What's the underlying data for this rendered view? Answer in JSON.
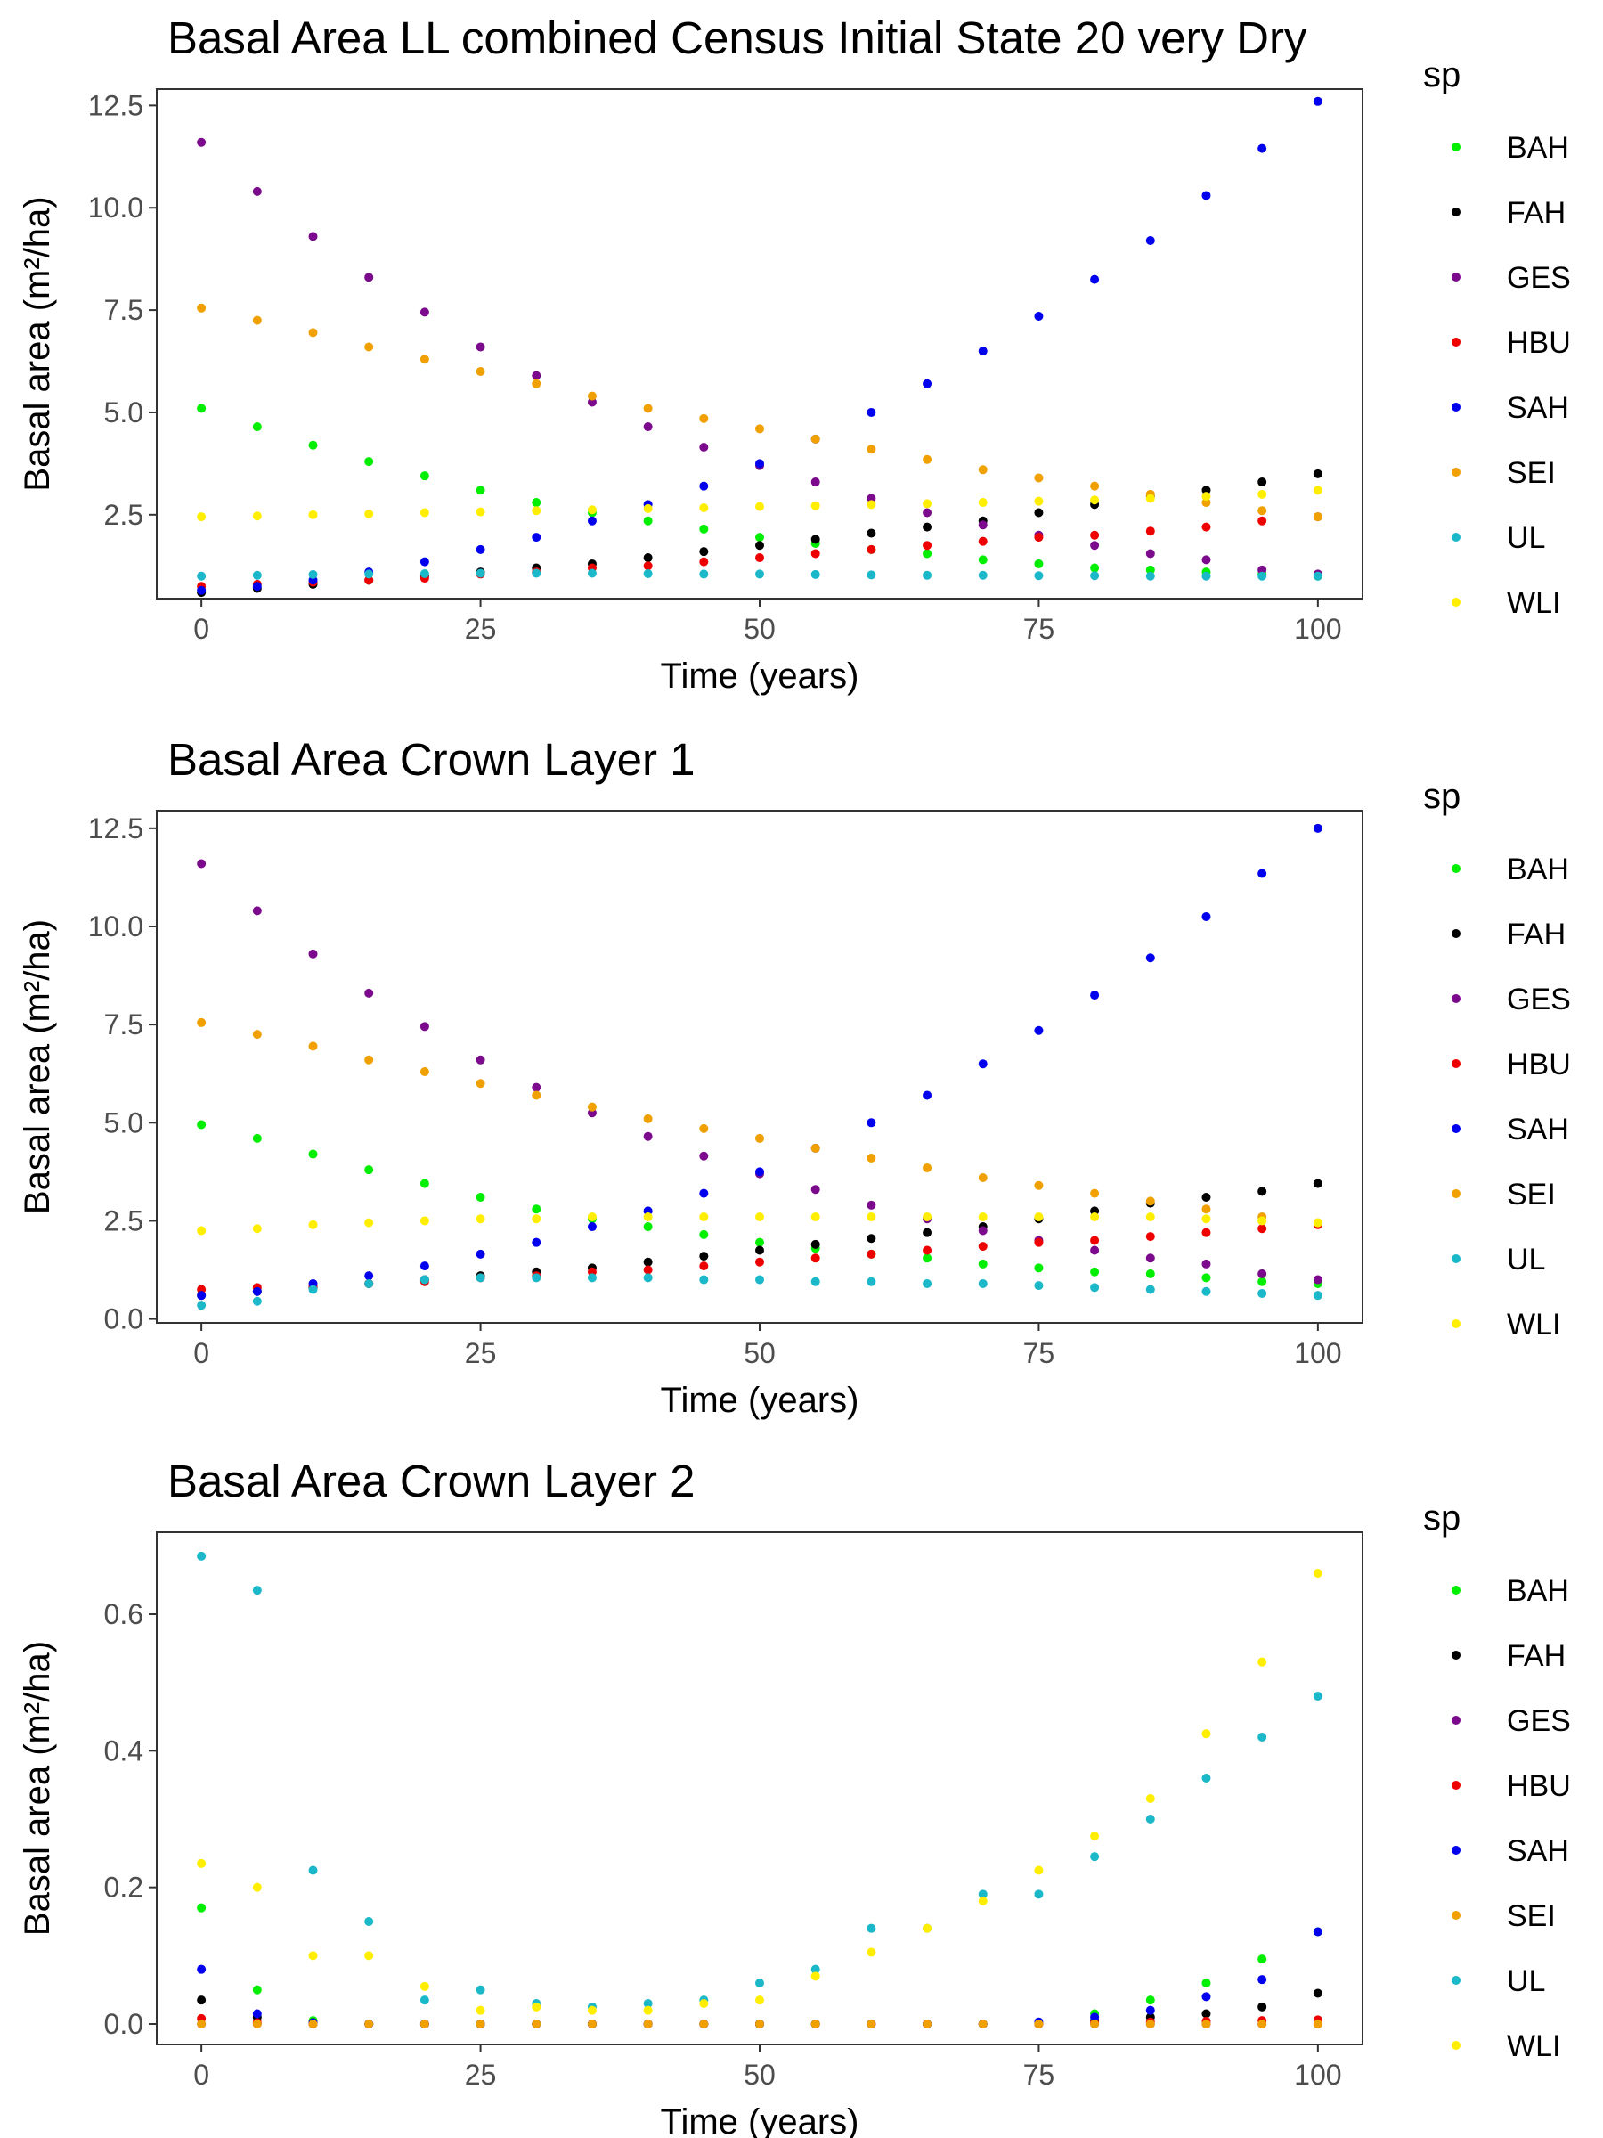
{
  "colors": {
    "BAH": "#00ee00",
    "FAH": "#000000",
    "GES": "#7b0a8c",
    "HBU": "#ee0000",
    "SAH": "#0000ee",
    "SEI": "#f0a000",
    "UL": "#1ab8c8",
    "WLI": "#ffee00"
  },
  "chart_data": [
    {
      "type": "scatter",
      "title": "Basal Area LL combined Census Initial State 20 very Dry",
      "xlabel": "Time (years)",
      "ylabel": "Basal area (m²/ha)",
      "xlim": [
        -4,
        104
      ],
      "ylim": [
        0.45,
        12.9
      ],
      "xticks": [
        0,
        25,
        50,
        75,
        100
      ],
      "xtick_labels": [
        "0",
        "25",
        "50",
        "75",
        "100"
      ],
      "yticks": [
        2.5,
        5.0,
        7.5,
        10.0,
        12.5
      ],
      "ytick_labels": [
        "2.5",
        "5.0",
        "7.5",
        "10.0",
        "12.5"
      ],
      "legend": {
        "title": "sp",
        "position": "right"
      },
      "grid": false,
      "x": [
        0,
        5,
        10,
        15,
        20,
        25,
        30,
        35,
        40,
        45,
        50,
        55,
        60,
        65,
        70,
        75,
        80,
        85,
        90,
        95,
        100
      ],
      "series": [
        {
          "name": "BAH",
          "values": [
            5.1,
            4.65,
            4.2,
            3.8,
            3.45,
            3.1,
            2.8,
            2.55,
            2.35,
            2.15,
            1.95,
            1.8,
            1.65,
            1.55,
            1.4,
            1.3,
            1.2,
            1.15,
            1.1,
            1.05,
            1.0
          ]
        },
        {
          "name": "FAH",
          "values": [
            0.6,
            0.7,
            0.8,
            0.9,
            1.0,
            1.1,
            1.2,
            1.3,
            1.45,
            1.6,
            1.75,
            1.9,
            2.05,
            2.2,
            2.35,
            2.55,
            2.75,
            2.95,
            3.1,
            3.3,
            3.5
          ]
        },
        {
          "name": "GES",
          "values": [
            11.6,
            10.4,
            9.3,
            8.3,
            7.45,
            6.6,
            5.9,
            5.25,
            4.65,
            4.15,
            3.7,
            3.3,
            2.9,
            2.55,
            2.25,
            2.0,
            1.75,
            1.55,
            1.4,
            1.15,
            1.05
          ]
        },
        {
          "name": "HBU",
          "values": [
            0.75,
            0.8,
            0.85,
            0.9,
            0.95,
            1.05,
            1.1,
            1.2,
            1.25,
            1.35,
            1.45,
            1.55,
            1.65,
            1.75,
            1.85,
            1.95,
            2.0,
            2.1,
            2.2,
            2.35,
            2.45
          ]
        },
        {
          "name": "SAH",
          "values": [
            0.65,
            0.75,
            0.9,
            1.1,
            1.35,
            1.65,
            1.95,
            2.35,
            2.75,
            3.2,
            3.75,
            4.35,
            5.0,
            5.7,
            6.5,
            7.35,
            8.25,
            9.2,
            10.3,
            11.45,
            12.6
          ]
        },
        {
          "name": "SEI",
          "values": [
            7.55,
            7.25,
            6.95,
            6.6,
            6.3,
            6.0,
            5.7,
            5.4,
            5.1,
            4.85,
            4.6,
            4.35,
            4.1,
            3.85,
            3.6,
            3.4,
            3.2,
            3.0,
            2.8,
            2.6,
            2.45
          ]
        },
        {
          "name": "UL",
          "values": [
            1.0,
            1.02,
            1.04,
            1.05,
            1.06,
            1.07,
            1.07,
            1.07,
            1.06,
            1.05,
            1.05,
            1.04,
            1.03,
            1.02,
            1.02,
            1.01,
            1.01,
            1.0,
            1.0,
            1.0,
            1.0
          ]
        },
        {
          "name": "WLI",
          "values": [
            2.45,
            2.47,
            2.5,
            2.52,
            2.55,
            2.57,
            2.6,
            2.62,
            2.65,
            2.67,
            2.7,
            2.72,
            2.75,
            2.77,
            2.8,
            2.83,
            2.86,
            2.9,
            2.95,
            3.0,
            3.1
          ]
        }
      ]
    },
    {
      "type": "scatter",
      "title": "Basal Area Crown Layer 1",
      "xlabel": "Time (years)",
      "ylabel": "Basal area (m²/ha)",
      "xlim": [
        -4,
        104
      ],
      "ylim": [
        -0.1,
        12.95
      ],
      "xticks": [
        0,
        25,
        50,
        75,
        100
      ],
      "xtick_labels": [
        "0",
        "25",
        "50",
        "75",
        "100"
      ],
      "yticks": [
        0.0,
        2.5,
        5.0,
        7.5,
        10.0,
        12.5
      ],
      "ytick_labels": [
        "0.0",
        "2.5",
        "5.0",
        "7.5",
        "10.0",
        "12.5"
      ],
      "legend": {
        "title": "sp",
        "position": "right"
      },
      "grid": false,
      "x": [
        0,
        5,
        10,
        15,
        20,
        25,
        30,
        35,
        40,
        45,
        50,
        55,
        60,
        65,
        70,
        75,
        80,
        85,
        90,
        95,
        100
      ],
      "series": [
        {
          "name": "BAH",
          "values": [
            4.95,
            4.6,
            4.2,
            3.8,
            3.45,
            3.1,
            2.8,
            2.55,
            2.35,
            2.15,
            1.95,
            1.8,
            1.65,
            1.55,
            1.4,
            1.3,
            1.2,
            1.15,
            1.05,
            0.95,
            0.9
          ]
        },
        {
          "name": "FAH",
          "values": [
            0.6,
            0.7,
            0.8,
            0.9,
            1.0,
            1.1,
            1.2,
            1.3,
            1.45,
            1.6,
            1.75,
            1.9,
            2.05,
            2.2,
            2.35,
            2.55,
            2.75,
            2.95,
            3.1,
            3.25,
            3.45
          ]
        },
        {
          "name": "GES",
          "values": [
            11.6,
            10.4,
            9.3,
            8.3,
            7.45,
            6.6,
            5.9,
            5.25,
            4.65,
            4.15,
            3.7,
            3.3,
            2.9,
            2.55,
            2.25,
            2.0,
            1.75,
            1.55,
            1.4,
            1.15,
            1.0
          ]
        },
        {
          "name": "HBU",
          "values": [
            0.75,
            0.8,
            0.85,
            0.9,
            0.95,
            1.05,
            1.1,
            1.2,
            1.25,
            1.35,
            1.45,
            1.55,
            1.65,
            1.75,
            1.85,
            1.95,
            2.0,
            2.1,
            2.2,
            2.3,
            2.4
          ]
        },
        {
          "name": "SAH",
          "values": [
            0.6,
            0.7,
            0.9,
            1.1,
            1.35,
            1.65,
            1.95,
            2.35,
            2.75,
            3.2,
            3.75,
            4.35,
            5.0,
            5.7,
            6.5,
            7.35,
            8.25,
            9.2,
            10.25,
            11.35,
            12.5
          ]
        },
        {
          "name": "SEI",
          "values": [
            7.55,
            7.25,
            6.95,
            6.6,
            6.3,
            6.0,
            5.7,
            5.4,
            5.1,
            4.85,
            4.6,
            4.35,
            4.1,
            3.85,
            3.6,
            3.4,
            3.2,
            3.0,
            2.8,
            2.6,
            2.45
          ]
        },
        {
          "name": "UL",
          "values": [
            0.35,
            0.45,
            0.75,
            0.9,
            1.0,
            1.05,
            1.05,
            1.05,
            1.05,
            1.0,
            1.0,
            0.95,
            0.95,
            0.9,
            0.9,
            0.85,
            0.8,
            0.75,
            0.7,
            0.65,
            0.6
          ]
        },
        {
          "name": "WLI",
          "values": [
            2.25,
            2.3,
            2.4,
            2.45,
            2.5,
            2.55,
            2.55,
            2.6,
            2.6,
            2.6,
            2.6,
            2.6,
            2.6,
            2.6,
            2.6,
            2.6,
            2.6,
            2.6,
            2.55,
            2.5,
            2.45
          ]
        }
      ]
    },
    {
      "type": "scatter",
      "title": "Basal Area Crown Layer 2",
      "xlabel": "Time (years)",
      "ylabel": "Basal area (m²/ha)",
      "xlim": [
        -4,
        104
      ],
      "ylim": [
        -0.03,
        0.72
      ],
      "xticks": [
        0,
        25,
        50,
        75,
        100
      ],
      "xtick_labels": [
        "0",
        "25",
        "50",
        "75",
        "100"
      ],
      "yticks": [
        0.0,
        0.2,
        0.4,
        0.6
      ],
      "ytick_labels": [
        "0.0",
        "0.2",
        "0.4",
        "0.6"
      ],
      "legend": {
        "title": "sp",
        "position": "right"
      },
      "grid": false,
      "x": [
        0,
        5,
        10,
        15,
        20,
        25,
        30,
        35,
        40,
        45,
        50,
        55,
        60,
        65,
        70,
        75,
        80,
        85,
        90,
        95,
        100
      ],
      "series": [
        {
          "name": "BAH",
          "values": [
            0.17,
            0.05,
            0.005,
            0,
            0,
            0,
            0,
            0,
            0,
            0,
            0,
            0,
            0,
            0,
            0,
            0,
            0.015,
            0.035,
            0.06,
            0.095,
            0.135
          ]
        },
        {
          "name": "FAH",
          "values": [
            0.035,
            0.01,
            0.002,
            0,
            0,
            0,
            0,
            0,
            0,
            0,
            0,
            0,
            0,
            0,
            0,
            0,
            0.005,
            0.01,
            0.015,
            0.025,
            0.045
          ]
        },
        {
          "name": "GES",
          "values": [
            0,
            0,
            0,
            0,
            0,
            0,
            0,
            0,
            0,
            0,
            0,
            0,
            0,
            0,
            0,
            0,
            0,
            0,
            0,
            0,
            0
          ]
        },
        {
          "name": "HBU",
          "values": [
            0.008,
            0.002,
            0,
            0,
            0,
            0,
            0,
            0,
            0,
            0,
            0,
            0,
            0,
            0,
            0,
            0,
            0.002,
            0.003,
            0.004,
            0.005,
            0.006
          ]
        },
        {
          "name": "SAH",
          "values": [
            0.08,
            0.015,
            0.002,
            0,
            0,
            0,
            0,
            0,
            0,
            0,
            0,
            0,
            0,
            0,
            0,
            0.003,
            0.01,
            0.02,
            0.04,
            0.065,
            0.135
          ]
        },
        {
          "name": "SEI",
          "values": [
            0,
            0,
            0,
            0,
            0,
            0,
            0,
            0,
            0,
            0,
            0,
            0,
            0,
            0,
            0,
            0,
            0,
            0,
            0,
            0,
            0
          ]
        },
        {
          "name": "UL",
          "values": [
            0.685,
            0.635,
            0.225,
            0.15,
            0.035,
            0.05,
            0.03,
            0.025,
            0.03,
            0.035,
            0.06,
            0.08,
            0.14,
            0.14,
            0.19,
            0.19,
            0.245,
            0.3,
            0.36,
            0.42,
            0.48
          ]
        },
        {
          "name": "WLI",
          "values": [
            0.235,
            0.2,
            0.1,
            0.1,
            0.055,
            0.02,
            0.025,
            0.02,
            0.02,
            0.03,
            0.035,
            0.07,
            0.105,
            0.14,
            0.18,
            0.225,
            0.275,
            0.33,
            0.425,
            0.53,
            0.66
          ]
        }
      ]
    }
  ]
}
